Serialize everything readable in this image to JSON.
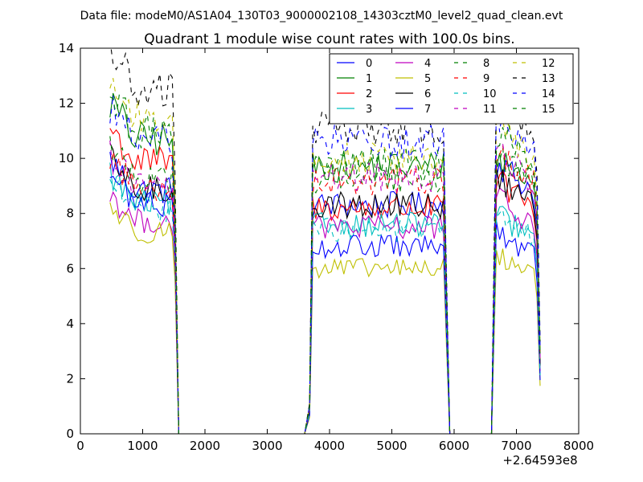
{
  "header": {
    "suptitle": "Data file: modeM0/AS1A04_130T03_9000002108_14303cztM0_level2_quad_clean.evt"
  },
  "chart_data": {
    "type": "line",
    "title": "Quadrant 1 module wise count rates with 100.0s bins.",
    "xlabel": "",
    "ylabel": "",
    "x_offset_label": "+2.64593e8",
    "xlim": [
      0,
      8000
    ],
    "ylim": [
      0,
      14
    ],
    "x_ticks": [
      0,
      1000,
      2000,
      3000,
      4000,
      5000,
      6000,
      7000,
      8000
    ],
    "y_ticks": [
      0,
      2,
      4,
      6,
      8,
      10,
      12,
      14
    ],
    "grid": false,
    "legend_position": "top-right",
    "legend_columns": 4,
    "segments": [
      {
        "name": "orbit-1",
        "x_start": 475,
        "x_end": 1475,
        "step": 50,
        "tail_x": [
          1520,
          1580
        ],
        "tail_factor": [
          0.7,
          0.0
        ]
      },
      {
        "name": "gap-1",
        "x": [
          1580,
          3600
        ],
        "y": 0.0
      },
      {
        "name": "orbit-2",
        "x_lead": [
          3600,
          3680
        ],
        "lead_factor": [
          0.0,
          0.1
        ],
        "x_start": 3730,
        "x_end": 5830,
        "step": 50,
        "tail_x": [
          5880,
          5930
        ],
        "tail_factor": [
          0.5,
          0.0
        ]
      },
      {
        "name": "gap-2",
        "x": [
          5930,
          6600
        ],
        "y": 0.0
      },
      {
        "name": "orbit-3",
        "x_lead": [
          6600
        ],
        "lead_factor": [
          0.0
        ],
        "x_start": 6680,
        "x_end": 7280,
        "step": 50,
        "tail_x": [
          7330,
          7380
        ],
        "tail_factor": [
          0.85,
          0.3
        ]
      }
    ],
    "series": [
      {
        "name": "0",
        "color": "#0000ff",
        "style": "solid",
        "levels": [
          9.5,
          8.3,
          8.8
        ]
      },
      {
        "name": "1",
        "color": "#008000",
        "style": "solid",
        "levels": [
          11.5,
          9.7,
          9.0
        ]
      },
      {
        "name": "2",
        "color": "#ff0000",
        "style": "solid",
        "levels": [
          10.6,
          8.2,
          8.2
        ]
      },
      {
        "name": "3",
        "color": "#00bfbf",
        "style": "solid",
        "levels": [
          9.0,
          7.6,
          7.1
        ]
      },
      {
        "name": "4",
        "color": "#bf00bf",
        "style": "solid",
        "levels": [
          8.3,
          7.5,
          7.6
        ]
      },
      {
        "name": "5",
        "color": "#bfbf00",
        "style": "solid",
        "levels": [
          7.9,
          6.0,
          5.8
        ]
      },
      {
        "name": "6",
        "color": "#000000",
        "style": "solid",
        "levels": [
          9.5,
          8.3,
          8.3
        ]
      },
      {
        "name": "7",
        "color": "#0000ff",
        "style": "solid",
        "levels": [
          9.0,
          6.8,
          6.5
        ]
      },
      {
        "name": "8",
        "color": "#008000",
        "style": "dashed",
        "levels": [
          10.0,
          9.3,
          9.0
        ]
      },
      {
        "name": "9",
        "color": "#ff0000",
        "style": "dashed",
        "levels": [
          9.6,
          9.2,
          9.1
        ]
      },
      {
        "name": "10",
        "color": "#00bfbf",
        "style": "dashed",
        "levels": [
          8.8,
          7.4,
          7.1
        ]
      },
      {
        "name": "11",
        "color": "#bf00bf",
        "style": "dashed",
        "levels": [
          9.7,
          9.3,
          9.2
        ]
      },
      {
        "name": "12",
        "color": "#bfbf00",
        "style": "dashed",
        "levels": [
          12.3,
          10.0,
          10.0
        ]
      },
      {
        "name": "13",
        "color": "#000000",
        "style": "dashed",
        "levels": [
          13.4,
          11.1,
          11.1
        ]
      },
      {
        "name": "14",
        "color": "#0000ff",
        "style": "dashed",
        "levels": [
          11.4,
          10.6,
          10.4
        ]
      },
      {
        "name": "15",
        "color": "#008000",
        "style": "dashed",
        "levels": [
          11.8,
          9.8,
          9.8
        ]
      }
    ]
  }
}
